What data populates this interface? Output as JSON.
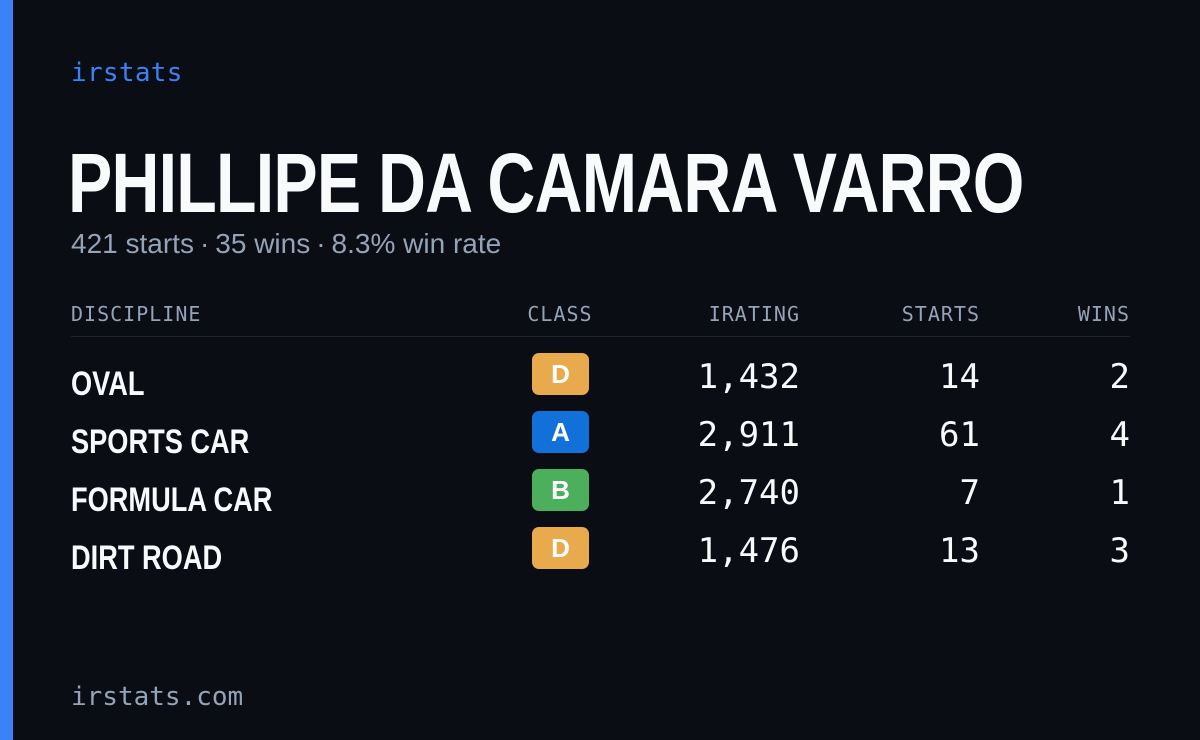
{
  "brand": "irstats",
  "driver": {
    "name": "PHILLIPE DA CAMARA VARRO",
    "starts_text": "421 starts",
    "wins_text": "35 wins",
    "win_rate_text": "8.3% win rate",
    "separator": "·"
  },
  "table": {
    "headers": {
      "discipline": "DISCIPLINE",
      "class": "CLASS",
      "irating": "IRATING",
      "starts": "STARTS",
      "wins": "WINS"
    },
    "rows": [
      {
        "discipline": "OVAL",
        "class": "D",
        "class_color": "#e9a94d",
        "irating": "1,432",
        "starts": "14",
        "wins": "2"
      },
      {
        "discipline": "SPORTS CAR",
        "class": "A",
        "class_color": "#1271d9",
        "irating": "2,911",
        "starts": "61",
        "wins": "4"
      },
      {
        "discipline": "FORMULA CAR",
        "class": "B",
        "class_color": "#4caf5c",
        "irating": "2,740",
        "starts": "7",
        "wins": "1"
      },
      {
        "discipline": "DIRT ROAD",
        "class": "D",
        "class_color": "#e9a94d",
        "irating": "1,476",
        "starts": "13",
        "wins": "3"
      }
    ]
  },
  "footer": {
    "url": "irstats.com"
  },
  "colors": {
    "accent": "#3b82f6",
    "background": "#0a0d14",
    "text_primary": "#f8fafc",
    "text_muted": "#94a3b8"
  }
}
